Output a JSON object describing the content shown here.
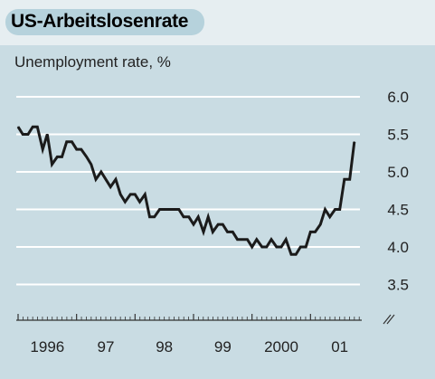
{
  "title": "US-Arbeitslosenrate",
  "subtitle": "Unemployment rate, %",
  "colors": {
    "line": "#1b1b1b",
    "grid": "#ffffff",
    "background": "#c9dce3"
  },
  "chart_data": {
    "type": "line",
    "title": "US-Arbeitslosenrate",
    "ylabel": "Unemployment rate, %",
    "xlabel": "",
    "ylim": [
      3.3,
      6.0
    ],
    "y_ticks": [
      6.0,
      5.5,
      5.0,
      4.5,
      4.0,
      3.5
    ],
    "y_tick_labels": [
      "6.0",
      "5.5",
      "5.0",
      "4.5",
      "4.0",
      "3.5"
    ],
    "x_tick_labels": [
      "1996",
      "97",
      "98",
      "99",
      "2000",
      "01"
    ],
    "x_range": [
      1996.0,
      2001.83
    ],
    "axis_break": true,
    "grid": true,
    "series": [
      {
        "x": [
          1996.0,
          1996.08,
          1996.17,
          1996.25,
          1996.33,
          1996.42,
          1996.5,
          1996.58,
          1996.67,
          1996.75,
          1996.83,
          1996.92,
          1997.0,
          1997.08,
          1997.17,
          1997.25,
          1997.33,
          1997.42,
          1997.5,
          1997.58,
          1997.67,
          1997.75,
          1997.83,
          1997.92,
          1998.0,
          1998.08,
          1998.17,
          1998.25,
          1998.33,
          1998.42,
          1998.5,
          1998.58,
          1998.67,
          1998.75,
          1998.83,
          1998.92,
          1999.0,
          1999.08,
          1999.17,
          1999.25,
          1999.33,
          1999.42,
          1999.5,
          1999.58,
          1999.67,
          1999.75,
          1999.83,
          1999.92,
          2000.0,
          2000.08,
          2000.17,
          2000.25,
          2000.33,
          2000.42,
          2000.5,
          2000.58,
          2000.67,
          2000.75,
          2000.83,
          2000.92,
          2001.0,
          2001.08,
          2001.17,
          2001.25,
          2001.33,
          2001.42,
          2001.5,
          2001.58,
          2001.67,
          2001.75
        ],
        "values": [
          5.6,
          5.5,
          5.5,
          5.6,
          5.6,
          5.3,
          5.5,
          5.1,
          5.2,
          5.2,
          5.4,
          5.4,
          5.3,
          5.3,
          5.2,
          5.1,
          4.9,
          5.0,
          4.9,
          4.8,
          4.9,
          4.7,
          4.6,
          4.7,
          4.7,
          4.6,
          4.7,
          4.4,
          4.4,
          4.5,
          4.5,
          4.5,
          4.5,
          4.5,
          4.4,
          4.4,
          4.3,
          4.4,
          4.2,
          4.4,
          4.2,
          4.3,
          4.3,
          4.2,
          4.2,
          4.1,
          4.1,
          4.1,
          4.0,
          4.1,
          4.0,
          4.0,
          4.1,
          4.0,
          4.0,
          4.1,
          3.9,
          3.9,
          4.0,
          4.0,
          4.2,
          4.2,
          4.3,
          4.5,
          4.4,
          4.5,
          4.5,
          4.9,
          4.9,
          5.4
        ]
      }
    ]
  }
}
